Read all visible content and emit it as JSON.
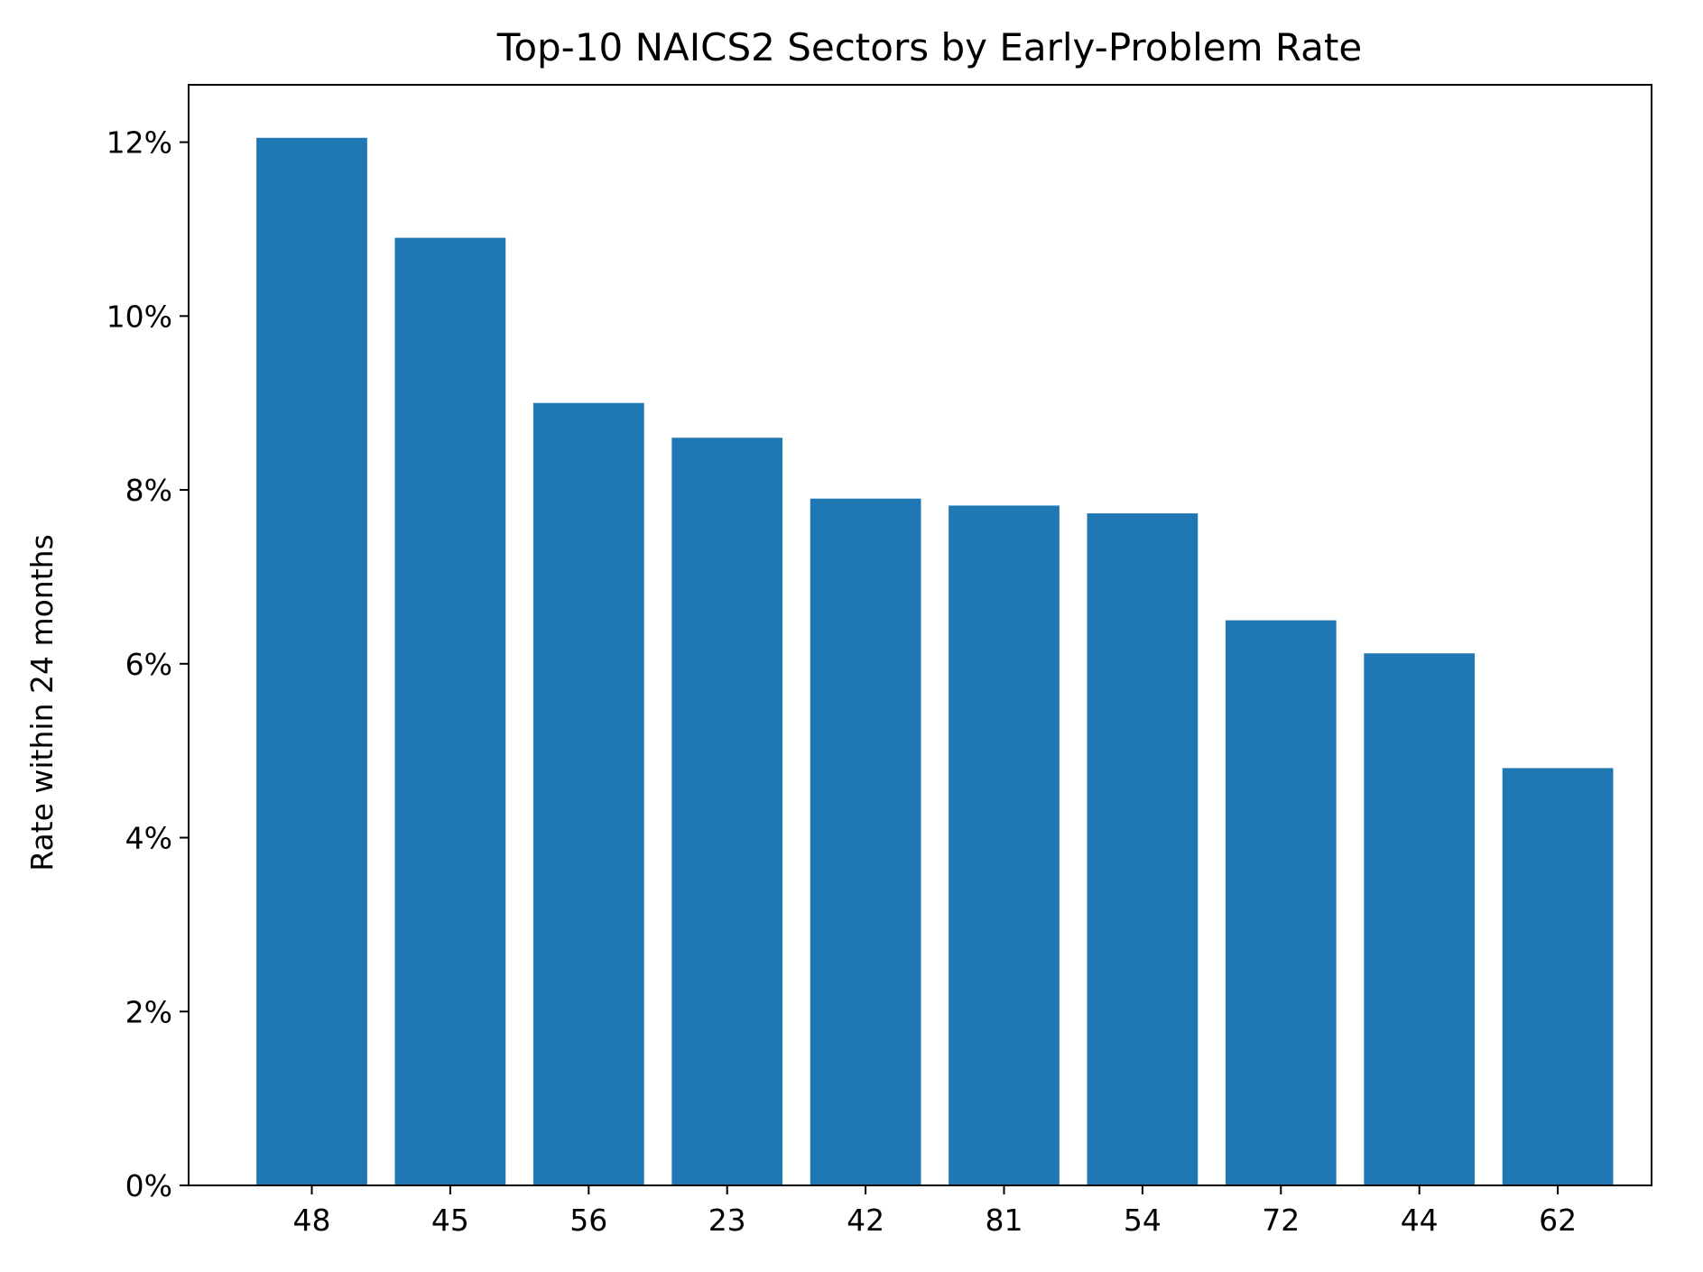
{
  "chart_data": {
    "type": "bar",
    "title": "Top-10 NAICS2 Sectors by Early-Problem Rate",
    "xlabel": "",
    "ylabel": "Rate within 24 months",
    "categories": [
      "48",
      "45",
      "56",
      "23",
      "42",
      "81",
      "54",
      "72",
      "44",
      "62"
    ],
    "values": [
      0.1205,
      0.109,
      0.09,
      0.086,
      0.079,
      0.0782,
      0.0773,
      0.065,
      0.0612,
      0.048
    ],
    "ylim": [
      0,
      0.1266
    ],
    "yticks": [
      0,
      0.02,
      0.04,
      0.06,
      0.08,
      0.1,
      0.12
    ],
    "ytick_labels": [
      "0%",
      "2%",
      "4%",
      "6%",
      "8%",
      "10%",
      "12%"
    ],
    "grid": false,
    "bar_color": "#1f77b4"
  }
}
